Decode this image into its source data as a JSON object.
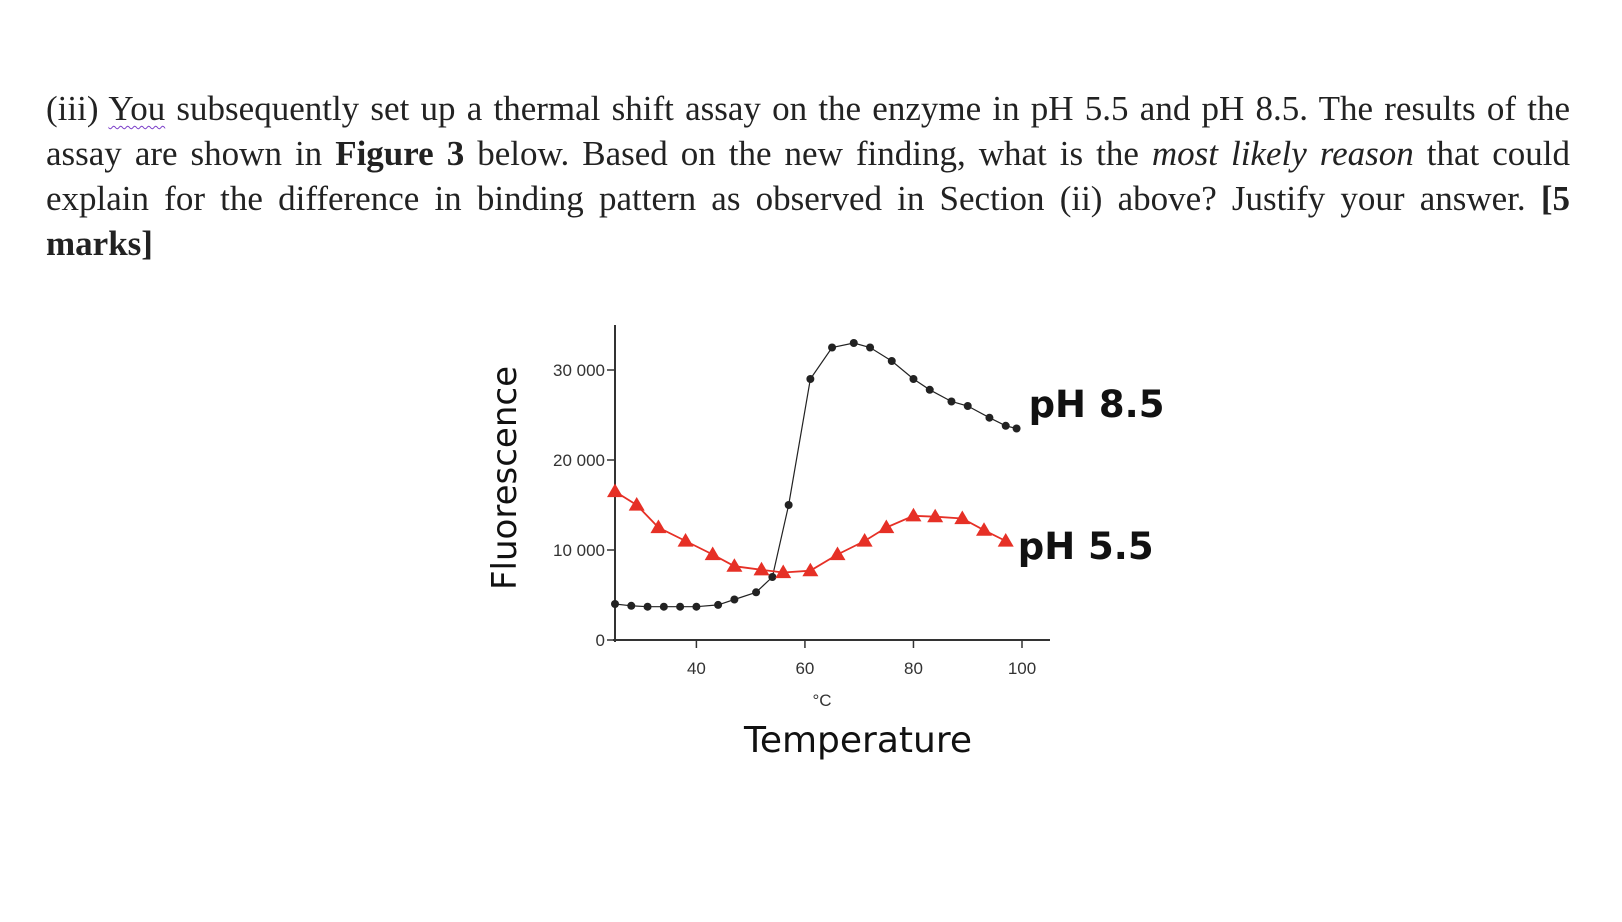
{
  "question": {
    "prefix": "(iii) ",
    "you": "You",
    "s1": " subsequently set up a thermal shift assay on the enzyme in pH 5.5 and pH 8.5. The results of the assay are shown in ",
    "figure_ref": "Figure 3",
    "s2": " below. Based on the new finding, what is the ",
    "most_likely": "most likely",
    "s3": " ",
    "reason": "reason",
    "s4": " that could explain for the difference in binding pattern as observed in Section (ii) above? Justify your answer. ",
    "marks": "[5 marks]"
  },
  "chart_data": {
    "type": "line",
    "xlabel": "Temperature",
    "xunit": "°C",
    "ylabel": "Fluorescence",
    "xlim": [
      25,
      100
    ],
    "ylim": [
      0,
      35000
    ],
    "xticks": [
      40,
      60,
      80,
      100
    ],
    "xtick_labels": [
      "40",
      "60",
      "80",
      "100"
    ],
    "yticks": [
      0,
      10000,
      20000,
      30000
    ],
    "ytick_labels": [
      "0",
      "10 000",
      "20 000",
      "30 000"
    ],
    "series": [
      {
        "name": "pH 8.5",
        "marker": "circle",
        "color": "#222222",
        "x": [
          25,
          28,
          31,
          34,
          37,
          40,
          44,
          47,
          51,
          54,
          57,
          61,
          65,
          69,
          72,
          76,
          80,
          83,
          87,
          90,
          94,
          97,
          99
        ],
        "y": [
          4000,
          3800,
          3700,
          3700,
          3700,
          3700,
          3900,
          4500,
          5300,
          7000,
          15000,
          29000,
          32500,
          33000,
          32500,
          31000,
          29000,
          27800,
          26500,
          26000,
          24700,
          23800,
          23500
        ]
      },
      {
        "name": "pH 5.5",
        "marker": "triangle",
        "color": "#e63026",
        "x": [
          25,
          29,
          33,
          38,
          43,
          47,
          52,
          56,
          61,
          66,
          71,
          75,
          80,
          84,
          89,
          93,
          97
        ],
        "y": [
          16500,
          15000,
          12500,
          11000,
          9500,
          8200,
          7800,
          7500,
          7700,
          9500,
          11000,
          12500,
          13800,
          13700,
          13500,
          12200,
          11000
        ]
      }
    ]
  },
  "colors": {
    "ph85": "#222222",
    "ph55": "#e63026"
  }
}
